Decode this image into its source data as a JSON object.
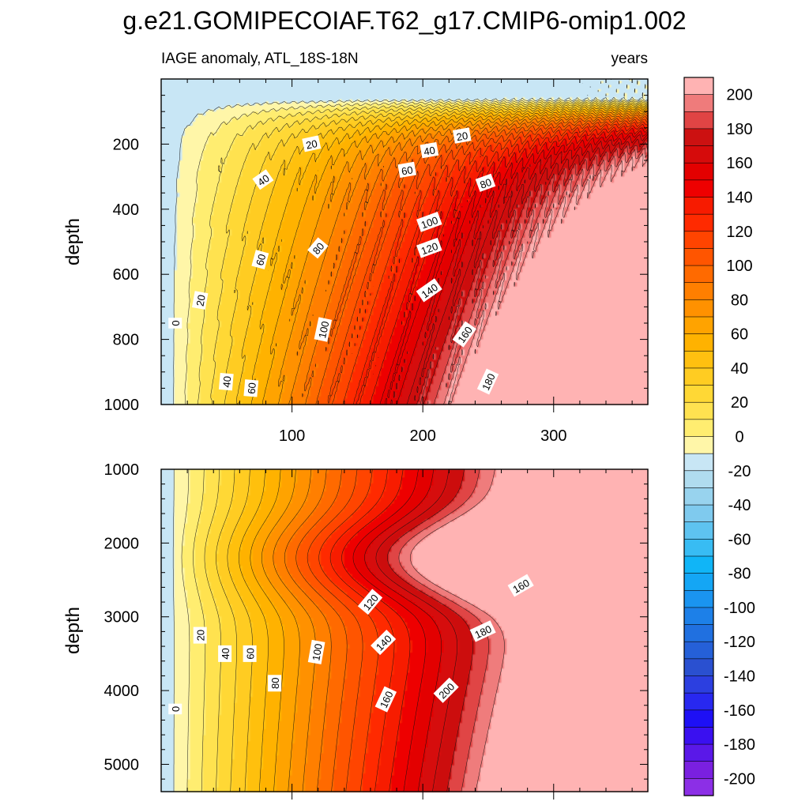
{
  "title": "g.e21.GOMIPECOIAF.T62_g17.CMIP6-omip1.002",
  "chart_data": {
    "type": "contour",
    "variable_label": "IAGE anomaly, ATL_18S-18N",
    "units": "years",
    "x_axis": {
      "ticks": [
        100,
        200,
        300
      ],
      "range": [
        0,
        372
      ]
    },
    "panels": [
      {
        "name": "upper-panel",
        "ylabel": "depth",
        "y_range": [
          0,
          1000
        ],
        "y_ticks": [
          200,
          400,
          600,
          800,
          1000
        ],
        "contour_labels": [
          {
            "text": "0",
            "x": 11,
            "y": 750,
            "rot": -90
          },
          {
            "text": "20",
            "x": 30,
            "y": 680,
            "rot": -80
          },
          {
            "text": "40",
            "x": 50,
            "y": 930,
            "rot": -85
          },
          {
            "text": "60",
            "x": 69,
            "y": 950,
            "rot": -85
          },
          {
            "text": "60",
            "x": 76,
            "y": 555,
            "rot": -75
          },
          {
            "text": "40",
            "x": 78,
            "y": 310,
            "rot": -35
          },
          {
            "text": "20",
            "x": 115,
            "y": 200,
            "rot": -12
          },
          {
            "text": "80",
            "x": 120,
            "y": 520,
            "rot": -50
          },
          {
            "text": "100",
            "x": 124,
            "y": 770,
            "rot": -78
          },
          {
            "text": "60",
            "x": 188,
            "y": 280,
            "rot": -10
          },
          {
            "text": "40",
            "x": 205,
            "y": 220,
            "rot": -10
          },
          {
            "text": "100",
            "x": 205,
            "y": 440,
            "rot": -20
          },
          {
            "text": "120",
            "x": 205,
            "y": 520,
            "rot": -20
          },
          {
            "text": "140",
            "x": 205,
            "y": 650,
            "rot": -35
          },
          {
            "text": "20",
            "x": 230,
            "y": 175,
            "rot": -10
          },
          {
            "text": "160",
            "x": 232,
            "y": 785,
            "rot": -55
          },
          {
            "text": "80",
            "x": 248,
            "y": 320,
            "rot": -20
          },
          {
            "text": "180",
            "x": 250,
            "y": 930,
            "rot": -65
          }
        ]
      },
      {
        "name": "lower-panel",
        "ylabel": "depth",
        "y_range": [
          1000,
          5370
        ],
        "y_ticks": [
          1000,
          2000,
          3000,
          4000,
          5000
        ],
        "contour_labels": [
          {
            "text": "0",
            "x": 11,
            "y": 4250,
            "rot": -90
          },
          {
            "text": "20",
            "x": 30,
            "y": 3250,
            "rot": -90
          },
          {
            "text": "40",
            "x": 49,
            "y": 3500,
            "rot": -90
          },
          {
            "text": "60",
            "x": 68,
            "y": 3500,
            "rot": -90
          },
          {
            "text": "80",
            "x": 87,
            "y": 3900,
            "rot": -90
          },
          {
            "text": "100",
            "x": 119,
            "y": 3480,
            "rot": -80
          },
          {
            "text": "120",
            "x": 160,
            "y": 2800,
            "rot": -50
          },
          {
            "text": "140",
            "x": 170,
            "y": 3350,
            "rot": -45
          },
          {
            "text": "160",
            "x": 172,
            "y": 4120,
            "rot": -65
          },
          {
            "text": "200",
            "x": 218,
            "y": 4000,
            "rot": -45
          },
          {
            "text": "180",
            "x": 246,
            "y": 3200,
            "rot": -25
          },
          {
            "text": "160",
            "x": 275,
            "y": 2580,
            "rot": -30
          }
        ]
      }
    ],
    "colorbar": {
      "labels": [
        "200",
        "180",
        "160",
        "140",
        "120",
        "100",
        "80",
        "60",
        "40",
        "20",
        "0",
        "-20",
        "-40",
        "-60",
        "-80",
        "-100",
        "-120",
        "-140",
        "-160",
        "-180",
        "-200"
      ],
      "colors": [
        "#ffb3b3",
        "#ef7b7b",
        "#e04444",
        "#cc1111",
        "#d60b0b",
        "#e30000",
        "#ee0000",
        "#f71b00",
        "#ff2a00",
        "#ff4400",
        "#ff5500",
        "#ff6a00",
        "#ff7f00",
        "#ff9100",
        "#ffa300",
        "#ffb200",
        "#ffc010",
        "#ffcc22",
        "#ffd835",
        "#ffe250",
        "#ffed70",
        "#fff6a8",
        "#c8e6f5",
        "#b0dcef",
        "#98d3ee",
        "#7fcaee",
        "#5ec3f0",
        "#38bcf3",
        "#10b5f7",
        "#14a6f5",
        "#1a94f0",
        "#1d80e8",
        "#2070e0",
        "#2560d8",
        "#2a50d0",
        "#2c3fe0",
        "#2828f0",
        "#1e10f5",
        "#3a10f0",
        "#5a18e8",
        "#7a20e0",
        "#8c2fe6"
      ]
    }
  }
}
